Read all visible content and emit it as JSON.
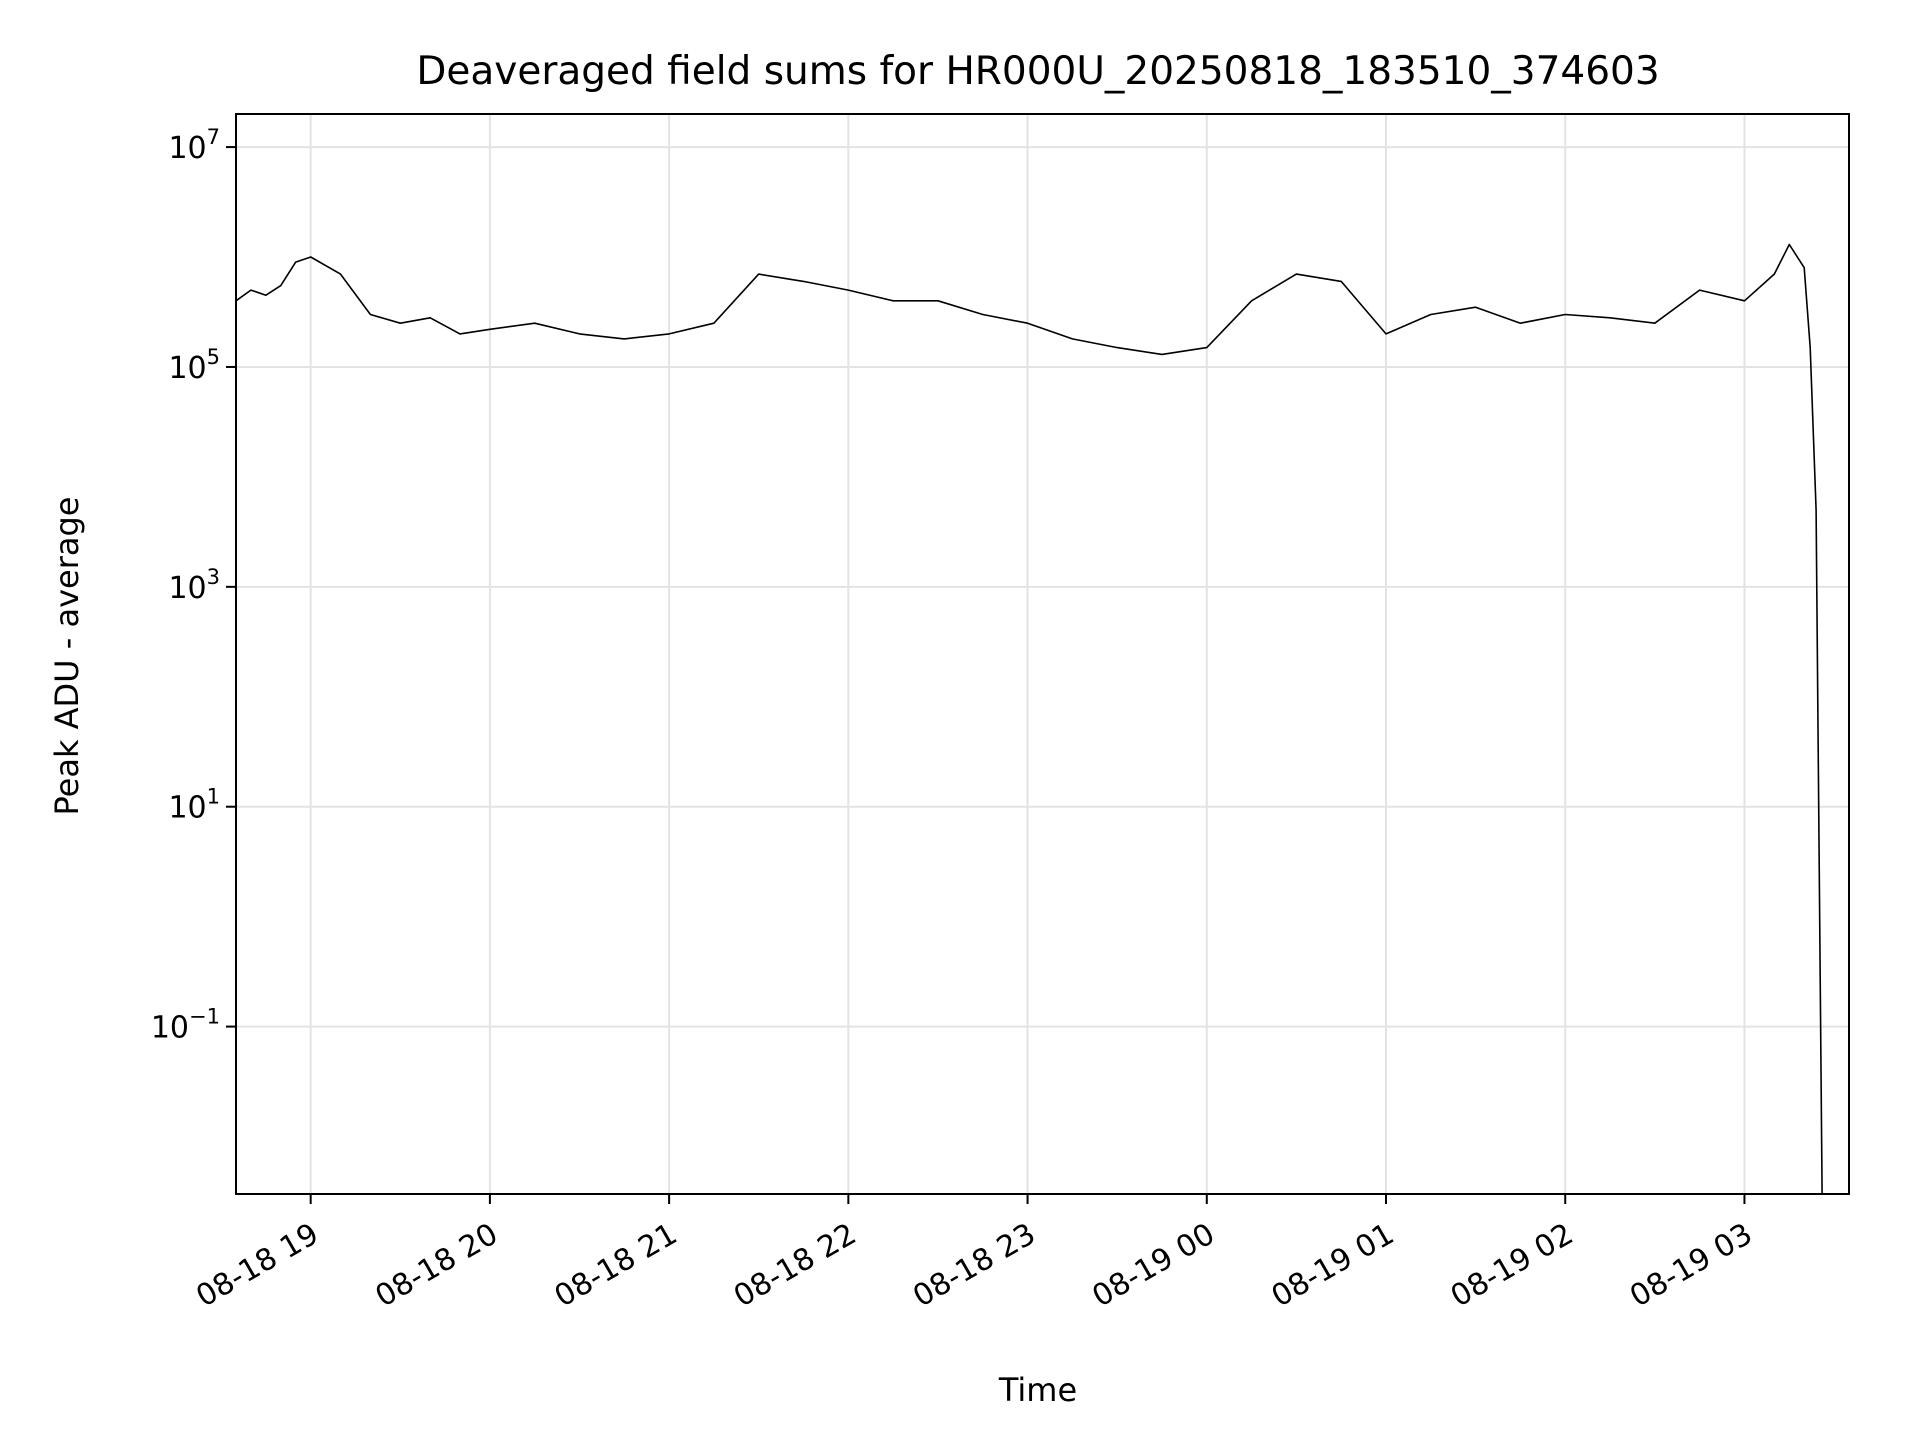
{
  "chart_data": {
    "type": "line",
    "title": "Deaveraged field sums for HR000U_20250818_183510_374603",
    "xlabel": "Time",
    "ylabel": "Peak ADU - average",
    "yscale": "log",
    "xlim": [
      "08-18 18:35",
      "08-19 03:35"
    ],
    "ylim": [
      0.003,
      20000000
    ],
    "grid": true,
    "x_ticks": [
      {
        "value": "08-18 19:00",
        "label": "08-18 19"
      },
      {
        "value": "08-18 20:00",
        "label": "08-18 20"
      },
      {
        "value": "08-18 21:00",
        "label": "08-18 21"
      },
      {
        "value": "08-18 22:00",
        "label": "08-18 22"
      },
      {
        "value": "08-18 23:00",
        "label": "08-18 23"
      },
      {
        "value": "08-19 00:00",
        "label": "08-19 00"
      },
      {
        "value": "08-19 01:00",
        "label": "08-19 01"
      },
      {
        "value": "08-19 02:00",
        "label": "08-19 02"
      },
      {
        "value": "08-19 03:00",
        "label": "08-19 03"
      }
    ],
    "y_ticks": [
      {
        "value": 10000000,
        "base": "10",
        "exp": "7"
      },
      {
        "value": 100000,
        "base": "10",
        "exp": "5"
      },
      {
        "value": 1000,
        "base": "10",
        "exp": "3"
      },
      {
        "value": 10,
        "base": "10",
        "exp": "1"
      },
      {
        "value": 0.1,
        "base": "10",
        "exp": "−1"
      }
    ],
    "series": [
      {
        "color": "#000000",
        "x": [
          "08-18 18:35",
          "08-18 18:40",
          "08-18 18:45",
          "08-18 18:50",
          "08-18 18:55",
          "08-18 19:00",
          "08-18 19:10",
          "08-18 19:20",
          "08-18 19:30",
          "08-18 19:40",
          "08-18 19:50",
          "08-18 20:00",
          "08-18 20:15",
          "08-18 20:30",
          "08-18 20:45",
          "08-18 21:00",
          "08-18 21:15",
          "08-18 21:30",
          "08-18 21:45",
          "08-18 22:00",
          "08-18 22:15",
          "08-18 22:30",
          "08-18 22:45",
          "08-18 23:00",
          "08-18 23:15",
          "08-18 23:30",
          "08-18 23:45",
          "08-19 00:00",
          "08-19 00:15",
          "08-19 00:30",
          "08-19 00:45",
          "08-19 01:00",
          "08-19 01:15",
          "08-19 01:30",
          "08-19 01:45",
          "08-19 02:00",
          "08-19 02:15",
          "08-19 02:30",
          "08-19 02:45",
          "08-19 03:00",
          "08-19 03:10",
          "08-19 03:15",
          "08-19 03:20",
          "08-19 03:22",
          "08-19 03:24",
          "08-19 03:26"
        ],
        "y": [
          400000,
          500000,
          450000,
          550000,
          900000,
          1000000,
          700000,
          300000,
          250000,
          280000,
          200000,
          220000,
          250000,
          200000,
          180000,
          200000,
          250000,
          700000,
          600000,
          500000,
          400000,
          400000,
          300000,
          250000,
          180000,
          150000,
          130000,
          150000,
          400000,
          700000,
          600000,
          200000,
          300000,
          350000,
          250000,
          300000,
          280000,
          250000,
          500000,
          400000,
          700000,
          1300000,
          800000,
          150000,
          5000,
          0.003
        ]
      }
    ],
    "annotations": []
  }
}
